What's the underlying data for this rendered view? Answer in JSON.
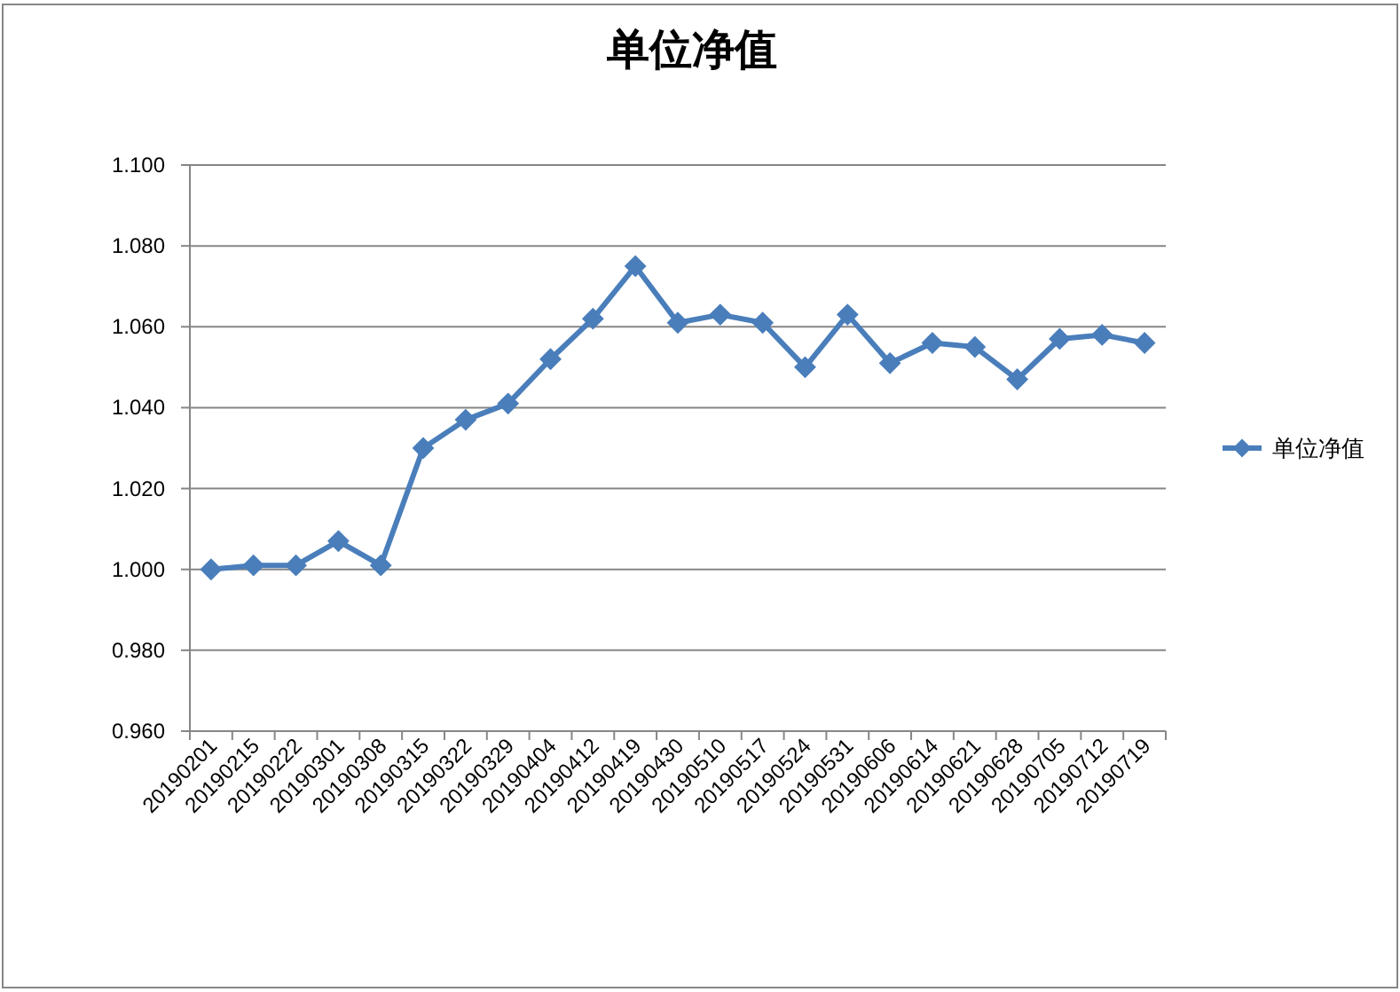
{
  "chart_data": {
    "type": "line",
    "title": "单位净值",
    "categories": [
      "20190201",
      "20190215",
      "20190222",
      "20190301",
      "20190308",
      "20190315",
      "20190322",
      "20190329",
      "20190404",
      "20190412",
      "20190419",
      "20190430",
      "20190510",
      "20190517",
      "20190524",
      "20190531",
      "20190606",
      "20190614",
      "20190621",
      "20190628",
      "20190705",
      "20190712",
      "20190719"
    ],
    "series": [
      {
        "name": "单位净值",
        "color": "#4a7ebb",
        "values": [
          1.0,
          1.001,
          1.001,
          1.007,
          1.001,
          1.03,
          1.037,
          1.041,
          1.052,
          1.062,
          1.075,
          1.061,
          1.063,
          1.061,
          1.05,
          1.063,
          1.051,
          1.056,
          1.055,
          1.047,
          1.057,
          1.058,
          1.056
        ]
      }
    ],
    "ylim": [
      0.96,
      1.1
    ],
    "yticks": [
      {
        "value": 0.96,
        "label": "0.960"
      },
      {
        "value": 0.98,
        "label": "0.980"
      },
      {
        "value": 1.0,
        "label": "1.000"
      },
      {
        "value": 1.02,
        "label": "1.020"
      },
      {
        "value": 1.04,
        "label": "1.040"
      },
      {
        "value": 1.06,
        "label": "1.060"
      },
      {
        "value": 1.08,
        "label": "1.080"
      },
      {
        "value": 1.1,
        "label": "1.100"
      }
    ],
    "grid": "y",
    "legend": "right",
    "marker": "diamond",
    "line_style": "solid"
  }
}
